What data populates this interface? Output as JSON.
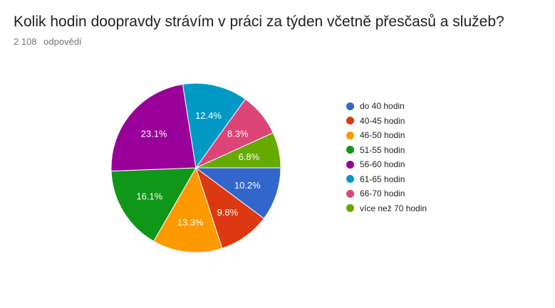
{
  "question": {
    "title": "Kolik hodin doopravdy strávím v práci za týden včetně přesčasů a služeb?",
    "response_count": "2 108",
    "response_label": "odpovědí"
  },
  "chart_data": {
    "type": "pie",
    "title": "Kolik hodin doopravdy strávím v práci za týden včetně přesčasů a služeb?",
    "legend_position": "right",
    "slices": [
      {
        "label": "do 40 hodin",
        "value": 10.2,
        "display": "10.2%",
        "color": "#3366cc"
      },
      {
        "label": "40-45 hodin",
        "value": 9.8,
        "display": "9.8%",
        "color": "#dc3912"
      },
      {
        "label": "46-50 hodin",
        "value": 13.3,
        "display": "13.3%",
        "color": "#ff9900"
      },
      {
        "label": "51-55 hodin",
        "value": 16.1,
        "display": "16.1%",
        "color": "#109618"
      },
      {
        "label": "56-60 hodin",
        "value": 23.1,
        "display": "23.1%",
        "color": "#990099"
      },
      {
        "label": "61-65 hodin",
        "value": 12.4,
        "display": "12.4%",
        "color": "#0099c6"
      },
      {
        "label": "66-70 hodin",
        "value": 8.3,
        "display": "8.3%",
        "color": "#dd4477"
      },
      {
        "label": "více než 70 hodin",
        "value": 6.8,
        "display": "6.8%",
        "color": "#66aa00"
      }
    ]
  }
}
